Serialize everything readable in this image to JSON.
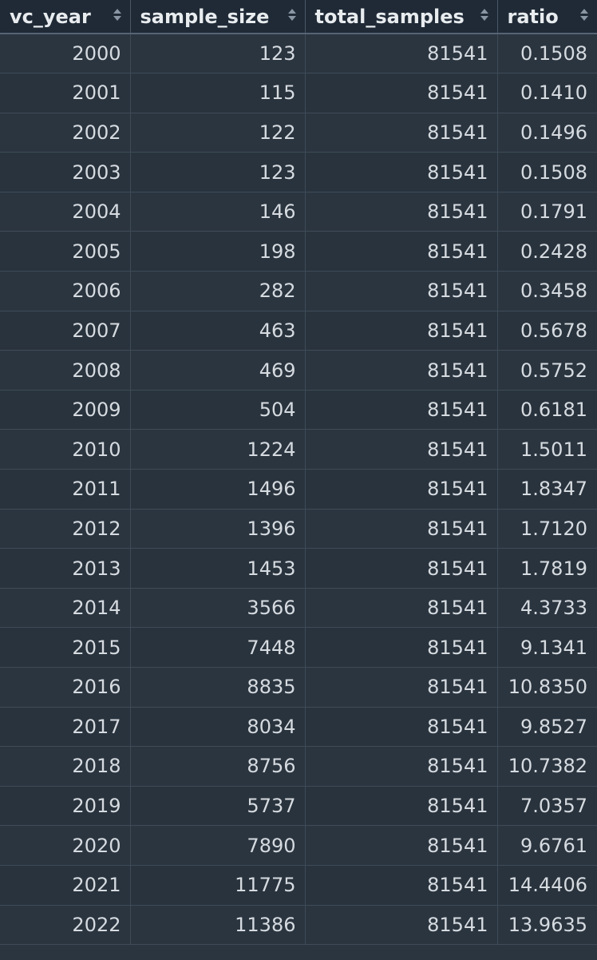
{
  "table": {
    "columns": [
      {
        "label": "vc_year"
      },
      {
        "label": "sample_size"
      },
      {
        "label": "total_samples"
      },
      {
        "label": "ratio"
      }
    ],
    "rows": [
      [
        "2000",
        "123",
        "81541",
        "0.1508"
      ],
      [
        "2001",
        "115",
        "81541",
        "0.1410"
      ],
      [
        "2002",
        "122",
        "81541",
        "0.1496"
      ],
      [
        "2003",
        "123",
        "81541",
        "0.1508"
      ],
      [
        "2004",
        "146",
        "81541",
        "0.1791"
      ],
      [
        "2005",
        "198",
        "81541",
        "0.2428"
      ],
      [
        "2006",
        "282",
        "81541",
        "0.3458"
      ],
      [
        "2007",
        "463",
        "81541",
        "0.5678"
      ],
      [
        "2008",
        "469",
        "81541",
        "0.5752"
      ],
      [
        "2009",
        "504",
        "81541",
        "0.6181"
      ],
      [
        "2010",
        "1224",
        "81541",
        "1.5011"
      ],
      [
        "2011",
        "1496",
        "81541",
        "1.8347"
      ],
      [
        "2012",
        "1396",
        "81541",
        "1.7120"
      ],
      [
        "2013",
        "1453",
        "81541",
        "1.7819"
      ],
      [
        "2014",
        "3566",
        "81541",
        "4.3733"
      ],
      [
        "2015",
        "7448",
        "81541",
        "9.1341"
      ],
      [
        "2016",
        "8835",
        "81541",
        "10.8350"
      ],
      [
        "2017",
        "8034",
        "81541",
        "9.8527"
      ],
      [
        "2018",
        "8756",
        "81541",
        "10.7382"
      ],
      [
        "2019",
        "5737",
        "81541",
        "7.0357"
      ],
      [
        "2020",
        "7890",
        "81541",
        "9.6761"
      ],
      [
        "2021",
        "11775",
        "81541",
        "14.4406"
      ],
      [
        "2022",
        "11386",
        "81541",
        "13.9635"
      ]
    ]
  },
  "colors": {
    "background": "#2b3540",
    "header_background": "#1f2a36",
    "header_text": "#e8ecef",
    "cell_text": "#d6dbe0",
    "grid_line": "#3e4b58"
  },
  "icons": {
    "sort": "sort-updown-icon"
  }
}
